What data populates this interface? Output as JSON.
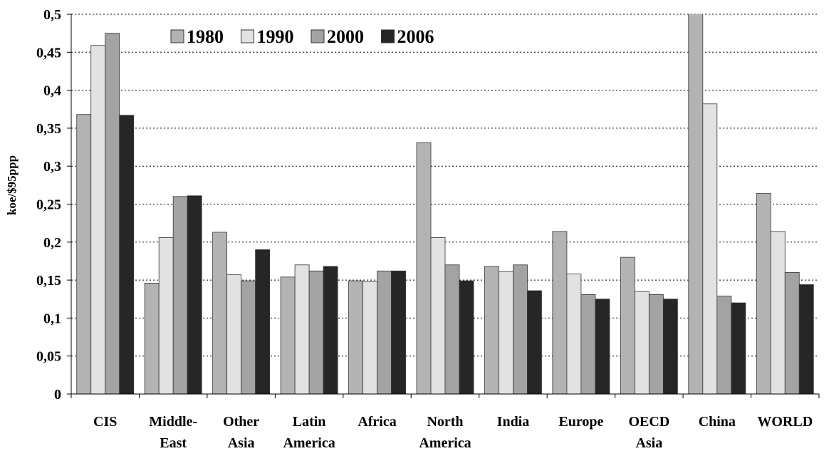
{
  "chart_data": {
    "type": "bar",
    "y_label": "koe/$95ppp",
    "categories": [
      "CIS",
      "Middle-\nEast",
      "Other\nAsia",
      "Latin\nAmerica",
      "Africa",
      "North\nAmerica",
      "India",
      "Europe",
      "OECD\nAsia",
      "China",
      "WORLD"
    ],
    "series": [
      {
        "name": "1980",
        "color": "#b3b3b3",
        "values": [
          0.368,
          0.146,
          0.213,
          0.154,
          0.149,
          0.331,
          0.168,
          0.214,
          0.18,
          0.52,
          0.264
        ]
      },
      {
        "name": "1990",
        "color": "#e2e2e2",
        "values": [
          0.459,
          0.206,
          0.157,
          0.17,
          0.148,
          0.206,
          0.161,
          0.158,
          0.135,
          0.382,
          0.214
        ]
      },
      {
        "name": "2000",
        "color": "#a3a3a3",
        "values": [
          0.475,
          0.26,
          0.149,
          0.162,
          0.162,
          0.17,
          0.17,
          0.131,
          0.131,
          0.129,
          0.16
        ]
      },
      {
        "name": "2006",
        "color": "#262626",
        "values": [
          0.367,
          0.261,
          0.19,
          0.168,
          0.162,
          0.149,
          0.136,
          0.125,
          0.125,
          0.12,
          0.144
        ]
      }
    ],
    "ylim": [
      0,
      0.5
    ],
    "yticks": [
      0,
      {
        "value": 0.05,
        "label": "0,05"
      },
      {
        "value": 0.1,
        "label": "0,1"
      },
      {
        "value": 0.15,
        "label": "0,15"
      },
      {
        "value": 0.2,
        "label": "0,2"
      },
      {
        "value": 0.25,
        "label": "0,25"
      },
      {
        "value": 0.3,
        "label": "0,3"
      },
      {
        "value": 0.35,
        "label": "0,35"
      },
      {
        "value": 0.4,
        "label": "0,4"
      },
      {
        "value": 0.45,
        "label": "0,45"
      },
      {
        "value": 0.5,
        "label": "0,5"
      }
    ],
    "grid": true,
    "legend": "top"
  }
}
